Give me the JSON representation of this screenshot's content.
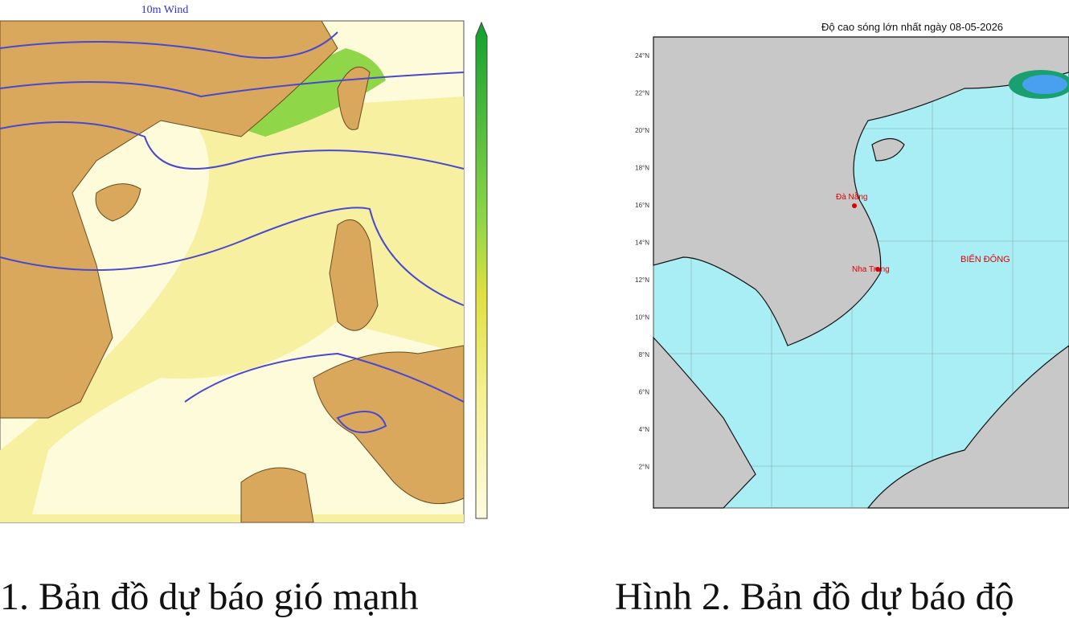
{
  "map1": {
    "title": "10m Wind"
  },
  "map2": {
    "title": "Độ cao sóng lớn nhất ngày 08-05-2026",
    "labels": [
      "Đà Nẵng",
      "Nha Trang",
      "BIỂN ĐÔNG"
    ],
    "lat_labels": [
      "24°N",
      "22°N",
      "20°N",
      "18°N",
      "16°N",
      "14°N",
      "12°N",
      "10°N",
      "8°N",
      "6°N",
      "4°N",
      "2°N"
    ]
  },
  "captions": [
    "1. Bản đồ dự báo gió mạnh",
    "Hình 2. Bản đồ dự báo độ"
  ]
}
